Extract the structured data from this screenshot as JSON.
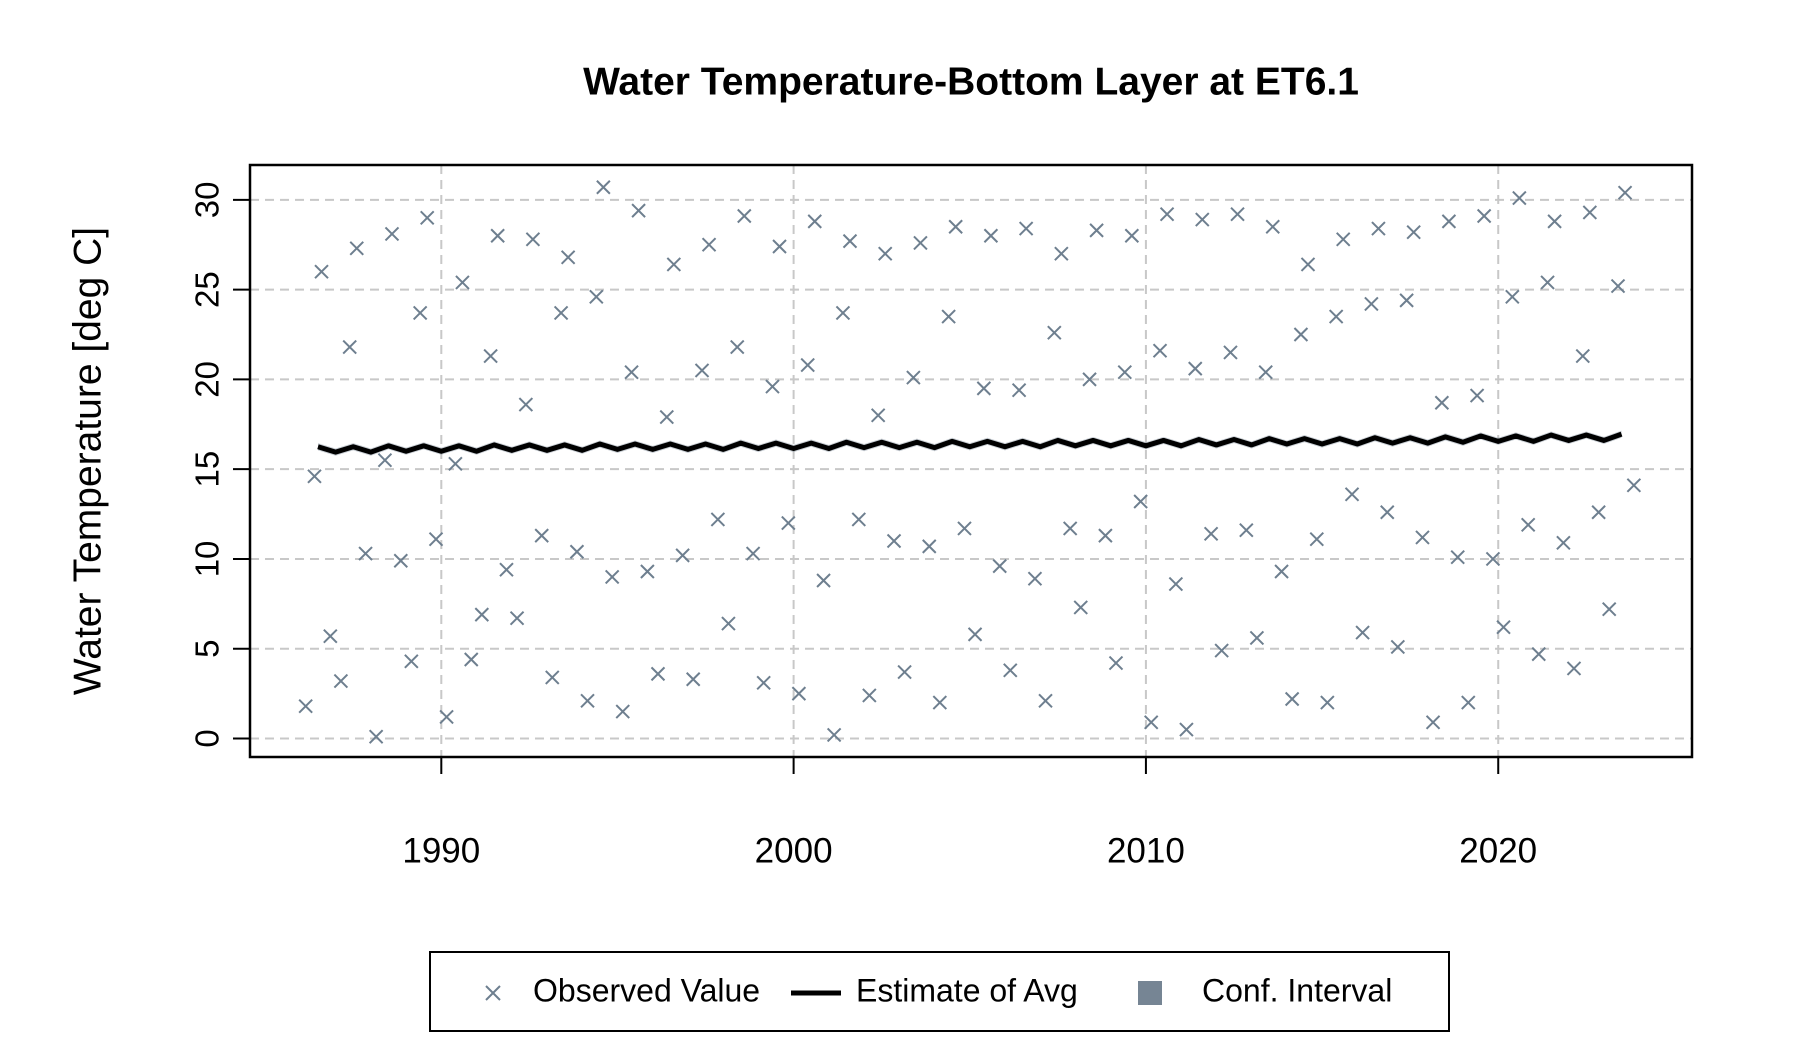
{
  "chart_data": {
    "type": "scatter",
    "title": "Water Temperature-Bottom Layer at ET6.1",
    "y_label": "Water Temperature [deg C]",
    "xlim": [
      1984.57,
      2025.5
    ],
    "ylim": [
      -1.03,
      31.94
    ],
    "xticks": [
      1990,
      2000,
      2010,
      2020
    ],
    "yticks": [
      0,
      5,
      10,
      15,
      20,
      25,
      30
    ],
    "grid": true,
    "series": [
      {
        "name": "Observed Value",
        "type": "scatter",
        "color": "#6e7f8f",
        "x": [
          1986.15,
          1986.4,
          1986.6,
          1986.85,
          1987.15,
          1987.4,
          1987.6,
          1987.85,
          1988.15,
          1988.4,
          1988.6,
          1988.85,
          1989.15,
          1989.4,
          1989.6,
          1989.85,
          1990.15,
          1990.4,
          1990.6,
          1990.85,
          1991.15,
          1991.4,
          1991.6,
          1991.85,
          1992.15,
          1992.4,
          1992.6,
          1992.85,
          1993.15,
          1993.4,
          1993.6,
          1993.85,
          1994.15,
          1994.4,
          1994.6,
          1994.85,
          1995.15,
          1995.4,
          1995.6,
          1995.85,
          1996.15,
          1996.4,
          1996.6,
          1996.85,
          1997.15,
          1997.4,
          1997.6,
          1997.85,
          1998.15,
          1998.4,
          1998.6,
          1998.85,
          1999.15,
          1999.4,
          1999.6,
          1999.85,
          2000.15,
          2000.4,
          2000.6,
          2000.85,
          2001.15,
          2001.4,
          2001.6,
          2001.85,
          2002.15,
          2002.4,
          2002.6,
          2002.85,
          2003.15,
          2003.4,
          2003.6,
          2003.85,
          2004.15,
          2004.4,
          2004.6,
          2004.85,
          2005.15,
          2005.4,
          2005.6,
          2005.85,
          2006.15,
          2006.4,
          2006.6,
          2006.85,
          2007.15,
          2007.4,
          2007.6,
          2007.85,
          2008.15,
          2008.4,
          2008.6,
          2008.85,
          2009.15,
          2009.4,
          2009.6,
          2009.85,
          2010.15,
          2010.4,
          2010.6,
          2010.85,
          2011.15,
          2011.4,
          2011.6,
          2011.85,
          2012.15,
          2012.4,
          2012.6,
          2012.85,
          2013.15,
          2013.4,
          2013.6,
          2013.85,
          2014.15,
          2014.4,
          2014.6,
          2014.85,
          2015.15,
          2015.4,
          2015.6,
          2015.85,
          2016.15,
          2016.4,
          2016.6,
          2016.85,
          2017.15,
          2017.4,
          2017.6,
          2017.85,
          2018.15,
          2018.4,
          2018.6,
          2018.85,
          2019.15,
          2019.4,
          2019.6,
          2019.85,
          2020.15,
          2020.4,
          2020.6,
          2020.85,
          2021.15,
          2021.4,
          2021.6,
          2021.85,
          2022.15,
          2022.4,
          2022.6,
          2022.85,
          2023.15,
          2023.4,
          2023.6,
          2023.85
        ],
        "values": [
          1.8,
          14.6,
          26.0,
          5.7,
          3.2,
          21.8,
          27.3,
          10.3,
          0.1,
          15.5,
          28.1,
          9.9,
          4.3,
          23.7,
          29.0,
          11.1,
          1.2,
          15.3,
          25.4,
          4.4,
          6.9,
          21.3,
          28.0,
          9.4,
          6.7,
          18.6,
          27.8,
          11.3,
          3.4,
          23.7,
          26.8,
          10.4,
          2.1,
          24.6,
          30.7,
          9.0,
          1.5,
          20.4,
          29.4,
          9.3,
          3.6,
          17.9,
          26.4,
          10.2,
          3.3,
          20.5,
          27.5,
          12.2,
          6.4,
          21.8,
          29.1,
          10.3,
          3.1,
          19.6,
          27.4,
          12.0,
          2.5,
          20.8,
          28.8,
          8.8,
          0.2,
          23.7,
          27.7,
          12.2,
          2.4,
          18.0,
          27.0,
          11.0,
          3.7,
          20.1,
          27.6,
          10.7,
          2.0,
          23.5,
          28.5,
          11.7,
          5.8,
          19.5,
          28.0,
          9.6,
          3.8,
          19.4,
          28.4,
          8.9,
          2.1,
          22.6,
          27.0,
          11.7,
          7.3,
          20.0,
          28.3,
          11.3,
          4.2,
          20.4,
          28.0,
          13.2,
          0.9,
          21.6,
          29.2,
          8.6,
          0.5,
          20.6,
          28.9,
          11.4,
          4.9,
          21.5,
          29.2,
          11.6,
          5.6,
          20.4,
          28.5,
          9.3,
          2.2,
          22.5,
          26.4,
          11.1,
          2.0,
          23.5,
          27.8,
          13.6,
          5.9,
          24.2,
          28.4,
          12.6,
          5.1,
          24.4,
          28.2,
          11.2,
          0.9,
          18.7,
          28.8,
          10.1,
          2.0,
          19.1,
          29.1,
          10.0,
          6.2,
          24.6,
          30.1,
          11.9,
          4.7,
          25.4,
          28.8,
          10.9,
          3.9,
          21.3,
          29.3,
          12.6,
          7.2,
          25.2,
          30.4,
          14.1
        ]
      },
      {
        "name": "Estimate of Avg",
        "type": "line",
        "color": "#000000",
        "x": [
          1986.5,
          1987,
          1987.5,
          1988,
          1988.5,
          1989,
          1989.5,
          1990,
          1990.5,
          1991,
          1991.5,
          1992,
          1992.5,
          1993,
          1993.5,
          1994,
          1994.5,
          1995,
          1995.5,
          1996,
          1996.5,
          1997,
          1997.5,
          1998,
          1998.5,
          1999,
          1999.5,
          2000,
          2000.5,
          2001,
          2001.5,
          2002,
          2002.5,
          2003,
          2003.5,
          2004,
          2004.5,
          2005,
          2005.5,
          2006,
          2006.5,
          2007,
          2007.5,
          2008,
          2008.5,
          2009,
          2009.5,
          2010,
          2010.5,
          2011,
          2011.5,
          2012,
          2012.5,
          2013,
          2013.5,
          2014,
          2014.5,
          2015,
          2015.5,
          2016,
          2016.5,
          2017,
          2017.5,
          2018,
          2018.5,
          2019,
          2019.5,
          2020,
          2020.5,
          2021,
          2021.5,
          2022,
          2022.5,
          2023,
          2023.5
        ],
        "values": [
          16.25,
          15.95,
          16.25,
          15.95,
          16.3,
          16.0,
          16.3,
          16.0,
          16.3,
          16.0,
          16.35,
          16.05,
          16.35,
          16.05,
          16.35,
          16.05,
          16.4,
          16.1,
          16.4,
          16.1,
          16.4,
          16.1,
          16.4,
          16.1,
          16.45,
          16.15,
          16.45,
          16.15,
          16.45,
          16.15,
          16.5,
          16.2,
          16.5,
          16.2,
          16.5,
          16.2,
          16.55,
          16.25,
          16.55,
          16.25,
          16.55,
          16.25,
          16.6,
          16.3,
          16.6,
          16.3,
          16.6,
          16.3,
          16.6,
          16.3,
          16.65,
          16.35,
          16.65,
          16.35,
          16.7,
          16.4,
          16.7,
          16.4,
          16.7,
          16.4,
          16.75,
          16.45,
          16.75,
          16.45,
          16.8,
          16.5,
          16.85,
          16.55,
          16.85,
          16.55,
          16.9,
          16.6,
          16.9,
          16.6,
          16.95
        ]
      },
      {
        "name": "Conf. Interval",
        "type": "band",
        "color": "#768594",
        "x": [
          1986.5,
          1987,
          1987.5,
          1988,
          1988.5,
          1989,
          1989.5,
          1990,
          1990.5,
          1991,
          1991.5,
          1992,
          1992.5,
          1993,
          1993.5,
          1994,
          1994.5,
          1995,
          1995.5,
          1996,
          1996.5,
          1997,
          1997.5,
          1998,
          1998.5,
          1999,
          1999.5,
          2000,
          2000.5,
          2001,
          2001.5,
          2002,
          2002.5,
          2003,
          2003.5,
          2004,
          2004.5,
          2005,
          2005.5,
          2006,
          2006.5,
          2007,
          2007.5,
          2008,
          2008.5,
          2009,
          2009.5,
          2010,
          2010.5,
          2011,
          2011.5,
          2012,
          2012.5,
          2013,
          2013.5,
          2014,
          2014.5,
          2015,
          2015.5,
          2016,
          2016.5,
          2017,
          2017.5,
          2018,
          2018.5,
          2019,
          2019.5,
          2020,
          2020.5,
          2021,
          2021.5,
          2022,
          2022.5,
          2023,
          2023.5
        ],
        "lower": [
          16.05,
          15.75,
          16.05,
          15.75,
          16.1,
          15.8,
          16.1,
          15.8,
          16.1,
          15.8,
          16.15,
          15.85,
          16.15,
          15.85,
          16.15,
          15.85,
          16.2,
          15.9,
          16.2,
          15.9,
          16.2,
          15.9,
          16.2,
          15.9,
          16.25,
          15.95,
          16.25,
          15.95,
          16.25,
          15.95,
          16.3,
          16.0,
          16.3,
          16.0,
          16.3,
          16.0,
          16.35,
          16.05,
          16.35,
          16.05,
          16.35,
          16.05,
          16.4,
          16.1,
          16.4,
          16.1,
          16.4,
          16.1,
          16.4,
          16.1,
          16.45,
          16.15,
          16.45,
          16.15,
          16.5,
          16.2,
          16.5,
          16.2,
          16.5,
          16.2,
          16.55,
          16.25,
          16.55,
          16.25,
          16.6,
          16.3,
          16.65,
          16.35,
          16.65,
          16.35,
          16.7,
          16.4,
          16.7,
          16.4,
          16.75
        ],
        "upper": [
          16.45,
          16.15,
          16.45,
          16.15,
          16.5,
          16.2,
          16.5,
          16.2,
          16.5,
          16.2,
          16.55,
          16.25,
          16.55,
          16.25,
          16.55,
          16.25,
          16.6,
          16.3,
          16.6,
          16.3,
          16.6,
          16.3,
          16.6,
          16.3,
          16.65,
          16.35,
          16.65,
          16.35,
          16.65,
          16.35,
          16.7,
          16.4,
          16.7,
          16.4,
          16.7,
          16.4,
          16.75,
          16.45,
          16.75,
          16.45,
          16.75,
          16.45,
          16.8,
          16.5,
          16.8,
          16.5,
          16.8,
          16.5,
          16.8,
          16.5,
          16.85,
          16.55,
          16.85,
          16.55,
          16.9,
          16.6,
          16.9,
          16.6,
          16.9,
          16.6,
          16.95,
          16.65,
          16.95,
          16.65,
          17.0,
          16.7,
          17.05,
          16.75,
          17.05,
          16.75,
          17.1,
          16.8,
          17.1,
          16.8,
          17.15
        ]
      }
    ]
  }
}
